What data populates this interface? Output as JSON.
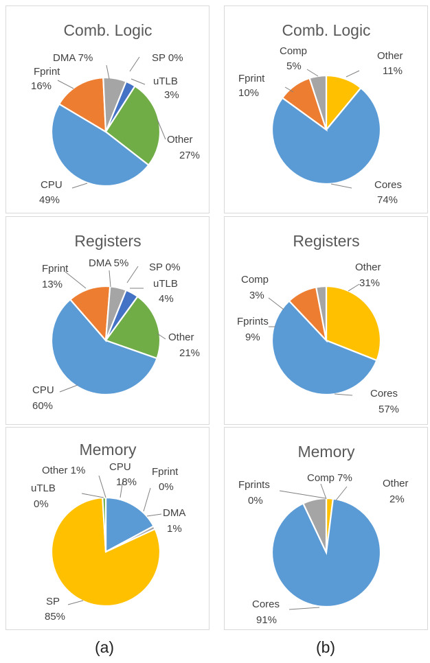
{
  "colors": {
    "cpu": "#5B9BD5",
    "cores": "#5B9BD5",
    "fprint": "#ED7D31",
    "dma": "#A5A5A5",
    "comp": "#A5A5A5",
    "sp": "#FFC000",
    "utlb": "#4472C4",
    "other_a": "#70AD47",
    "other_b": "#FFC000"
  },
  "captions": {
    "a": "(a)",
    "b": "(b)"
  },
  "chart_data": [
    {
      "id": "a-comb-logic",
      "type": "pie",
      "title": "Comb. Logic",
      "slices": [
        {
          "name": "SP",
          "value": 0,
          "color": "#FFC000",
          "label": "SP 0%"
        },
        {
          "name": "uTLB",
          "value": 3,
          "color": "#4472C4",
          "label": "uTLB",
          "pct": "3%"
        },
        {
          "name": "Other",
          "value": 27,
          "color": "#70AD47",
          "label": "Other",
          "pct": "27%"
        },
        {
          "name": "CPU",
          "value": 49,
          "color": "#5B9BD5",
          "label": "CPU",
          "pct": "49%"
        },
        {
          "name": "Fprint",
          "value": 16,
          "color": "#ED7D31",
          "label": "Fprint",
          "pct": "16%"
        },
        {
          "name": "DMA",
          "value": 7,
          "color": "#A5A5A5",
          "label": "DMA 7%"
        }
      ]
    },
    {
      "id": "b-comb-logic",
      "type": "pie",
      "title": "Comb. Logic",
      "slices": [
        {
          "name": "Other",
          "value": 11,
          "color": "#FFC000",
          "label": "Other",
          "pct": "11%"
        },
        {
          "name": "Cores",
          "value": 74,
          "color": "#5B9BD5",
          "label": "Cores",
          "pct": "74%"
        },
        {
          "name": "Fprint",
          "value": 10,
          "color": "#ED7D31",
          "label": "Fprint",
          "pct": "10%"
        },
        {
          "name": "Comp",
          "value": 5,
          "color": "#A5A5A5",
          "label": "Comp",
          "pct": "5%"
        }
      ]
    },
    {
      "id": "a-registers",
      "type": "pie",
      "title": "Registers",
      "slices": [
        {
          "name": "SP",
          "value": 0,
          "color": "#FFC000",
          "label": "SP 0%"
        },
        {
          "name": "uTLB",
          "value": 4,
          "color": "#4472C4",
          "label": "uTLB",
          "pct": "4%"
        },
        {
          "name": "Other",
          "value": 21,
          "color": "#70AD47",
          "label": "Other",
          "pct": "21%"
        },
        {
          "name": "CPU",
          "value": 60,
          "color": "#5B9BD5",
          "label": "CPU",
          "pct": "60%"
        },
        {
          "name": "Fprint",
          "value": 13,
          "color": "#ED7D31",
          "label": "Fprint",
          "pct": "13%"
        },
        {
          "name": "DMA",
          "value": 5,
          "color": "#A5A5A5",
          "label": "DMA 5%"
        }
      ]
    },
    {
      "id": "b-registers",
      "type": "pie",
      "title": "Registers",
      "slices": [
        {
          "name": "Other",
          "value": 31,
          "color": "#FFC000",
          "label": "Other",
          "pct": "31%"
        },
        {
          "name": "Cores",
          "value": 57,
          "color": "#5B9BD5",
          "label": "Cores",
          "pct": "57%"
        },
        {
          "name": "Fprints",
          "value": 9,
          "color": "#ED7D31",
          "label": "Fprints",
          "pct": "9%"
        },
        {
          "name": "Comp",
          "value": 3,
          "color": "#A5A5A5",
          "label": "Comp",
          "pct": "3%"
        }
      ]
    },
    {
      "id": "a-memory",
      "type": "pie",
      "title": "Memory",
      "slices": [
        {
          "name": "CPU",
          "value": 18,
          "color": "#5B9BD5",
          "label": "CPU",
          "pct": "18%"
        },
        {
          "name": "Fprint",
          "value": 0,
          "color": "#ED7D31",
          "label": "Fprint",
          "pct": "0%"
        },
        {
          "name": "DMA",
          "value": 1,
          "color": "#A5A5A5",
          "label": "DMA",
          "pct": "1%"
        },
        {
          "name": "SP",
          "value": 85,
          "color": "#FFC000",
          "label": "SP",
          "pct": "85%"
        },
        {
          "name": "uTLB",
          "value": 0,
          "color": "#4472C4",
          "label": "uTLB",
          "pct": "0%"
        },
        {
          "name": "Other",
          "value": 1,
          "color": "#70AD47",
          "label": "Other 1%"
        }
      ]
    },
    {
      "id": "b-memory",
      "type": "pie",
      "title": "Memory",
      "slices": [
        {
          "name": "Other",
          "value": 2,
          "color": "#FFC000",
          "label": "Other",
          "pct": "2%"
        },
        {
          "name": "Cores",
          "value": 91,
          "color": "#5B9BD5",
          "label": "Cores",
          "pct": "91%"
        },
        {
          "name": "Fprints",
          "value": 0,
          "color": "#ED7D31",
          "label": "Fprints",
          "pct": "0%"
        },
        {
          "name": "Comp",
          "value": 7,
          "color": "#A5A5A5",
          "label": "Comp 7%"
        }
      ]
    }
  ]
}
